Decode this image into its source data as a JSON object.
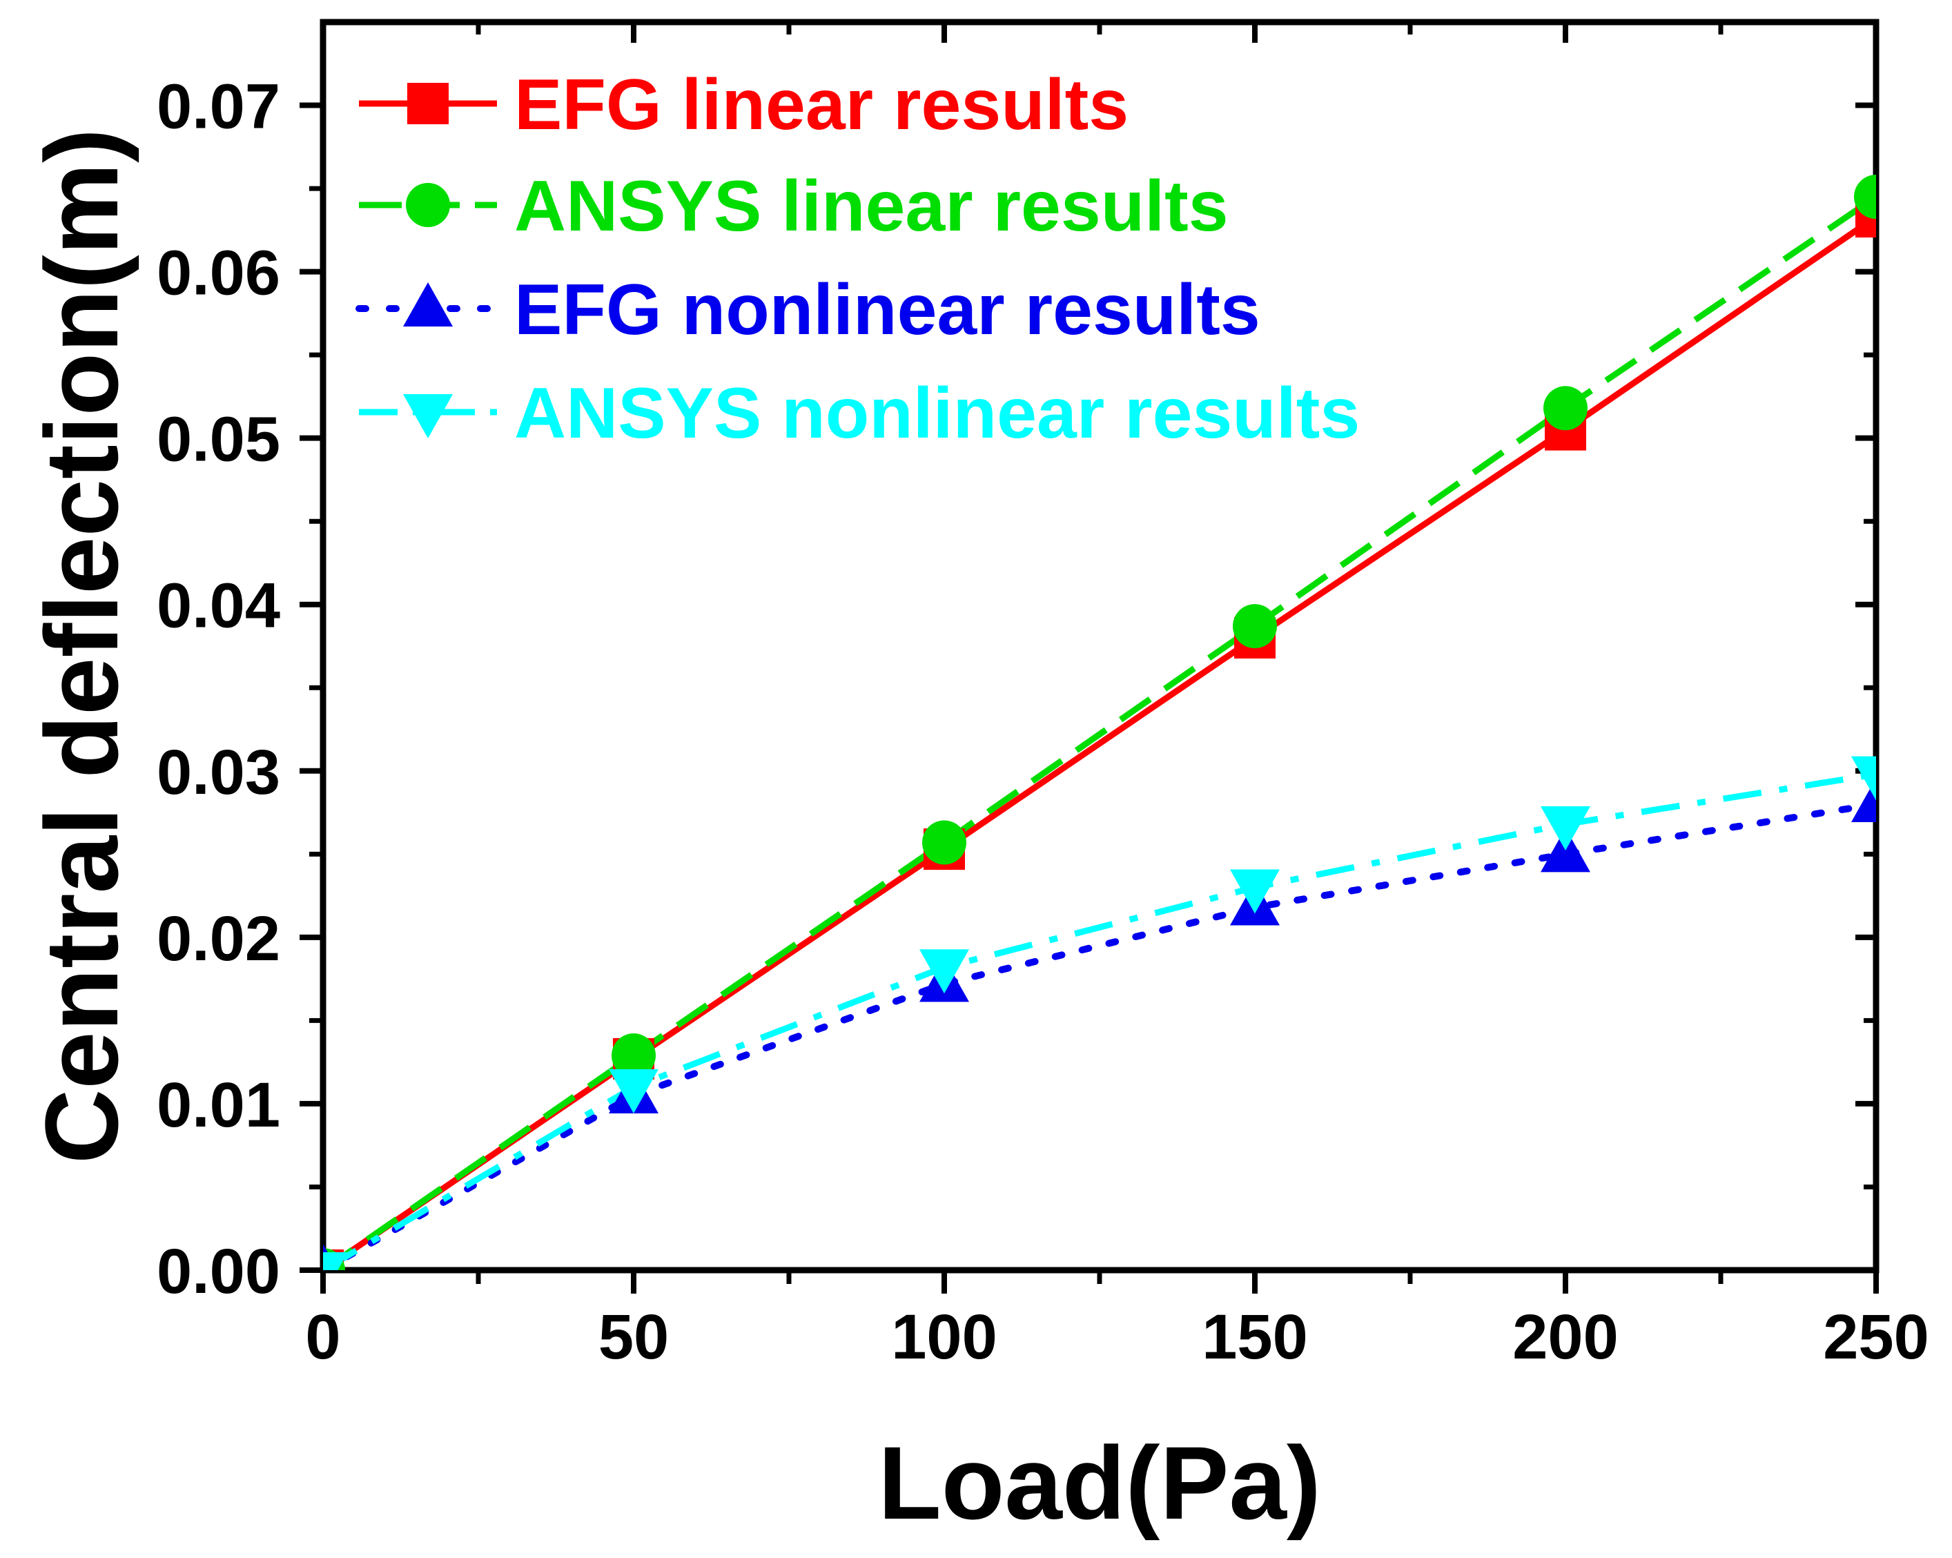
{
  "chart_data": {
    "type": "line",
    "title": "",
    "xlabel": "Load(Pa)",
    "ylabel": "Central deflection(m)",
    "xlim": [
      0,
      250
    ],
    "ylim": [
      0,
      0.075
    ],
    "xticks": [
      0,
      50,
      100,
      150,
      200,
      250
    ],
    "xtick_labels": [
      "0",
      "50",
      "100",
      "150",
      "200",
      "250"
    ],
    "yticks": [
      0,
      0.01,
      0.02,
      0.03,
      0.04,
      0.05,
      0.06,
      0.07
    ],
    "ytick_labels": [
      "0.00",
      "0.01",
      "0.02",
      "0.03",
      "0.04",
      "0.05",
      "0.06",
      "0.07"
    ],
    "x_minor_step": 25,
    "y_minor_step": 0.005,
    "grid": false,
    "legend_position": "top-left",
    "x": [
      0,
      50,
      100,
      150,
      200,
      250
    ],
    "series": [
      {
        "name": "EFG linear results",
        "color": "#ff0000",
        "line_style": "solid",
        "marker": "square",
        "values": [
          0.0,
          0.0127,
          0.0253,
          0.038,
          0.0505,
          0.0633
        ]
      },
      {
        "name": "ANSYS linear results",
        "color": "#00dd00",
        "line_style": "dashed",
        "marker": "circle",
        "values": [
          0.0,
          0.0129,
          0.0257,
          0.0387,
          0.0518,
          0.0645
        ]
      },
      {
        "name": "EFG nonlinear results",
        "color": "#0000ee",
        "line_style": "dotted",
        "marker": "triangle-up",
        "values": [
          0.0,
          0.0105,
          0.0172,
          0.0218,
          0.025,
          0.028
        ]
      },
      {
        "name": "ANSYS nonlinear results",
        "color": "#00ffff",
        "line_style": "dash-dot",
        "marker": "triangle-down",
        "values": [
          0.0,
          0.011,
          0.0182,
          0.023,
          0.0268,
          0.0298
        ]
      }
    ]
  }
}
